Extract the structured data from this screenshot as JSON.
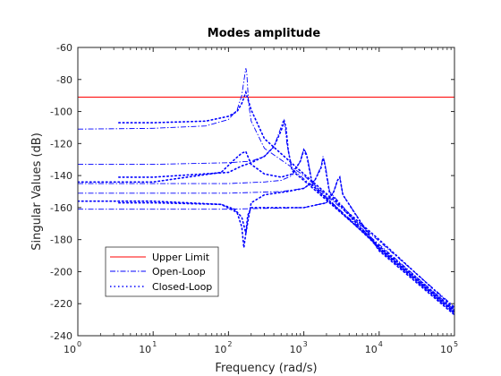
{
  "chart_data": {
    "type": "line",
    "title": "Modes amplitude",
    "xlabel": "Frequency (rad/s)",
    "ylabel": "Singular Values (dB)",
    "xscale": "log",
    "xlim": [
      1,
      100000
    ],
    "ylim": [
      -240,
      -60
    ],
    "xtick_labels": [
      {
        "base": "10",
        "exp": "0"
      },
      {
        "base": "10",
        "exp": "1"
      },
      {
        "base": "10",
        "exp": "2"
      },
      {
        "base": "10",
        "exp": "3"
      },
      {
        "base": "10",
        "exp": "4"
      },
      {
        "base": "10",
        "exp": "5"
      }
    ],
    "yticks": [
      -240,
      -220,
      -200,
      -180,
      -160,
      -140,
      -120,
      -100,
      -80,
      -60
    ],
    "grid": false,
    "legend_position": "bottom-left",
    "series": [
      {
        "name": "Upper Limit",
        "style": "solid",
        "color": "#ff0000",
        "lines": [
          {
            "x": [
              1,
              100000
            ],
            "y": [
              -91,
              -91
            ]
          }
        ]
      },
      {
        "name": "Open-Loop",
        "style": "dash-dot",
        "color": "#0000ff",
        "lines": [
          {
            "x": [
              1,
              10,
              50,
              100,
              130,
              150,
              160,
              170,
              175,
              185,
              200,
              300,
              1000,
              10000,
              100000
            ],
            "y": [
              -111,
              -110.5,
              -109,
              -105,
              -99,
              -90,
              -81,
              -73,
              -76,
              -95,
              -106,
              -123,
              -140,
              -181,
              -222
            ]
          },
          {
            "x": [
              1,
              10,
              100,
              200,
              300,
              400,
              480,
              530,
              560,
              600,
              700,
              1000,
              10000,
              100000
            ],
            "y": [
              -133,
              -133,
              -132,
              -131,
              -128,
              -122,
              -112,
              -106,
              -108,
              -121,
              -136,
              -142,
              -183,
              -224
            ]
          },
          {
            "x": [
              1,
              10,
              100,
              300,
              500,
              700,
              900,
              1000,
              1100,
              1300,
              10000,
              100000
            ],
            "y": [
              -145,
              -145,
              -145,
              -144,
              -143,
              -140,
              -131,
              -123,
              -127,
              -145,
              -185,
              -225
            ]
          },
          {
            "x": [
              1,
              10,
              100,
              500,
              1000,
              1400,
              1700,
              1800,
              1900,
              2200,
              10000,
              100000
            ],
            "y": [
              -151,
              -151,
              -151,
              -150,
              -148,
              -143,
              -134,
              -128,
              -132,
              -150,
              -185,
              -225
            ]
          },
          {
            "x": [
              1,
              10,
              100,
              1000,
              2000,
              2500,
              2800,
              3000,
              3300,
              10000,
              100000
            ],
            "y": [
              -161,
              -161,
              -161,
              -160,
              -157,
              -150,
              -143,
              -141,
              -152,
              -186,
              -226
            ]
          }
        ]
      },
      {
        "name": "Closed-Loop",
        "style": "dotted",
        "color": "#0000ff",
        "lines": [
          {
            "x": [
              3.5,
              10,
              50,
              100,
              130,
              150,
              170,
              200,
              300,
              1000,
              10000,
              100000
            ],
            "y": [
              -107,
              -107,
              -106,
              -103,
              -100,
              -95,
              -88,
              -99,
              -117,
              -139,
              -180,
              -223
            ]
          },
          {
            "x": [
              3.5,
              10,
              100,
              150,
              200,
              300,
              400,
              500,
              550,
              580,
              620,
              700,
              1000,
              10000,
              100000
            ],
            "y": [
              -141,
              -141,
              -138,
              -134,
              -132,
              -128,
              -122,
              -112,
              -106,
              -110,
              -124,
              -137,
              -143,
              -184,
              -224
            ]
          },
          {
            "x": [
              1,
              10,
              80,
              120,
              150,
              170,
              200,
              300,
              500,
              700,
              900,
              1000,
              1100,
              1300,
              10000,
              100000
            ],
            "y": [
              -144,
              -144,
              -138,
              -130,
              -126,
              -125,
              -133,
              -139,
              -141,
              -139,
              -131,
              -124,
              -128,
              -146,
              -185,
              -225
            ]
          },
          {
            "x": [
              1,
              10,
              80,
              120,
              150,
              170,
              200,
              300,
              600,
              1000,
              1400,
              1700,
              1800,
              1900,
              2200,
              10000,
              100000
            ],
            "y": [
              -156,
              -156,
              -158,
              -161,
              -166,
              -176,
              -157,
              -152,
              -150,
              -148,
              -143,
              -135,
              -129,
              -133,
              -151,
              -186,
              -226
            ]
          },
          {
            "x": [
              3.5,
              10,
              80,
              130,
              150,
              160,
              170,
              180,
              200,
              300,
              1000,
              2000,
              2500,
              2800,
              3000,
              3300,
              10000,
              100000
            ],
            "y": [
              -157,
              -157,
              -158,
              -163,
              -172,
              -185,
              -176,
              -165,
              -160,
              -160,
              -160,
              -157,
              -150,
              -143,
              -141,
              -152,
              -187,
              -227
            ]
          }
        ]
      }
    ]
  }
}
